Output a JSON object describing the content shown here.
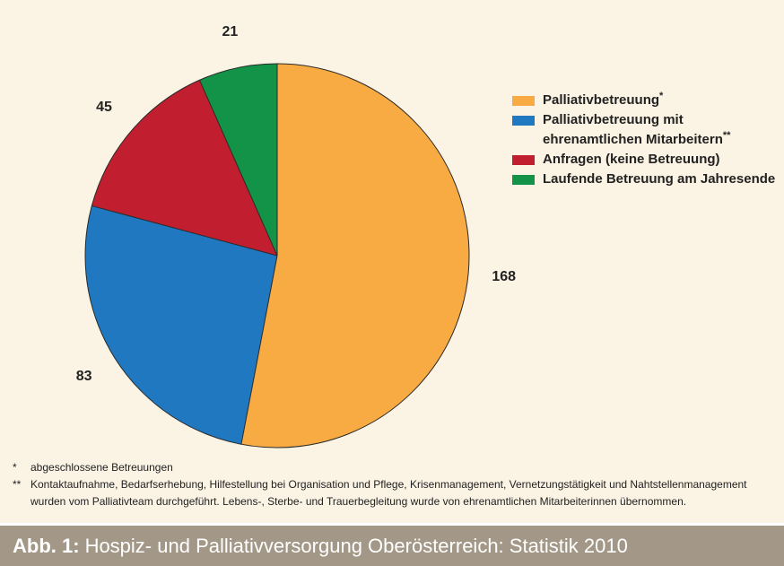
{
  "chart_data": {
    "type": "pie",
    "title": "",
    "categories": [
      "Palliativbetreuung*",
      "Palliativbetreuung mit ehrenamtlichen Mitarbeitern**",
      "Anfragen (keine Betreuung)",
      "Laufende Betreuung am Jahresende"
    ],
    "values": [
      168,
      83,
      45,
      21
    ],
    "colors": [
      "#f7ab42",
      "#1f78c0",
      "#c11f30",
      "#129347"
    ],
    "start_angle": "12 o'clock",
    "direction": "clockwise",
    "legend_position": "right",
    "legend": [
      {
        "label": "Palliativbetreuung",
        "mark": "*",
        "color": "#f7ab42"
      },
      {
        "label": "Palliativbetreuung mit\nehrenamtlichen Mitarbeitern",
        "mark": "**",
        "color": "#1f78c0"
      },
      {
        "label": "Anfragen (keine Betreuung)",
        "mark": "",
        "color": "#c11f30"
      },
      {
        "label": "Laufende Betreuung am Jahresende",
        "mark": "",
        "color": "#129347"
      }
    ]
  },
  "footnotes": [
    {
      "mark": "*",
      "text": "abgeschlossene Betreuungen"
    },
    {
      "mark": "**",
      "text": "Kontaktaufnahme, Bedarfserhebung, Hilfestellung bei Organisation und Pflege, Krisenmanagement, Vernetzungstätigkeit und Nahtstellenmanagement wurden vom Palliativteam durchgeführt. Lebens-, Sterbe- und Trauerbegleitung wurde von ehrenamtlichen Mitarbeiterinnen übernommen."
    }
  ],
  "caption": {
    "prefix": "Abb. 1:",
    "text": "Hospiz- und Palliativversorgung Oberösterreich: Statistik 2010"
  },
  "colors": {
    "background": "#fbf3e4",
    "caption_bar": "#a39887"
  }
}
